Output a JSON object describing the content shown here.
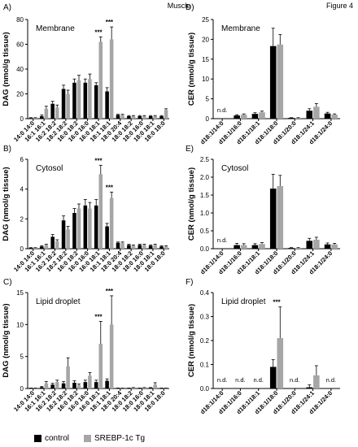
{
  "page": {
    "title": "Muscle",
    "figure": "Figure 4"
  },
  "legend": [
    {
      "name": "control",
      "color": "#000000"
    },
    {
      "name": "SREBP-1c Tg",
      "color": "#a6a6a6"
    }
  ],
  "chart_data": [
    {
      "panel": "A)",
      "title": "Membrane",
      "type": "bar",
      "ylabel": "DAG (nmol/g tissue)",
      "ylim": [
        0,
        80
      ],
      "yticks": [
        0,
        20,
        40,
        60,
        80
      ],
      "categories": [
        "14:0 14:0",
        "16:1 16:1",
        "16:2 18:2",
        "18:2 18:2",
        "16:0 18:2",
        "16:0 16:0",
        "16:0 18:1",
        "18:1 18:1",
        "18:0 20:4",
        "18:0 18:2",
        "18:0 16:0",
        "18:0 18:1",
        "18:0 18:0"
      ],
      "series": [
        {
          "name": "control",
          "values": [
            0.5,
            2,
            12,
            24,
            29,
            29,
            27,
            22,
            3,
            2,
            2,
            2,
            2
          ],
          "errors": [
            0.3,
            1,
            2,
            3,
            3,
            3,
            2,
            3,
            0.5,
            0.5,
            0.5,
            0.5,
            0.5
          ]
        },
        {
          "name": "SREBP-1c Tg",
          "values": [
            0.5,
            8,
            9,
            20,
            31,
            32,
            62,
            64,
            3,
            2,
            2,
            2,
            7
          ],
          "errors": [
            0.3,
            2,
            2,
            3,
            4,
            4,
            4,
            10,
            0.5,
            0.5,
            0.5,
            0.5,
            1
          ]
        }
      ],
      "annotations": [
        {
          "category": "16:0 18:1",
          "text": "***"
        },
        {
          "category": "18:1 18:1",
          "text": "***"
        }
      ]
    },
    {
      "panel": "B)",
      "title": "Cytosol",
      "type": "bar",
      "ylabel": "DAG (nmol/g tissue)",
      "ylim": [
        0,
        6
      ],
      "yticks": [
        0,
        2,
        4,
        6
      ],
      "categories": [
        "14:0 14:0",
        "16:1 16:1",
        "16:2 18:2",
        "18:2 18:2",
        "16:0 18:2",
        "16:0 16:0",
        "16:0 18:1",
        "18:1 18:1",
        "18:0 20:4",
        "18:0 18:2",
        "18:0 16:0",
        "18:0 18:1",
        "18:0 18:0"
      ],
      "series": [
        {
          "name": "control",
          "values": [
            0.05,
            0.15,
            0.8,
            1.9,
            2.4,
            2.9,
            2.9,
            1.5,
            0.4,
            0.25,
            0.25,
            0.2,
            0.15
          ],
          "errors": [
            0.02,
            0.05,
            0.15,
            0.3,
            0.3,
            0.4,
            0.4,
            0.2,
            0.05,
            0.05,
            0.05,
            0.05,
            0.05
          ]
        },
        {
          "name": "SREBP-1c Tg",
          "values": [
            0.05,
            0.25,
            0.5,
            1.3,
            2.7,
            2.7,
            5.0,
            3.4,
            0.4,
            0.2,
            0.25,
            0.25,
            0.15
          ],
          "errors": [
            0.02,
            0.05,
            0.1,
            0.2,
            0.3,
            0.4,
            0.6,
            0.4,
            0.05,
            0.05,
            0.05,
            0.05,
            0.05
          ]
        }
      ],
      "annotations": [
        {
          "category": "16:0 18:1",
          "text": "***"
        },
        {
          "category": "18:1 18:1",
          "text": "***"
        }
      ]
    },
    {
      "panel": "C)",
      "title": "Lipid droplet",
      "type": "bar",
      "ylabel": "DAG (nmol/g tissue)",
      "ylim": [
        0,
        15
      ],
      "yticks": [
        0,
        5,
        10,
        15
      ],
      "categories": [
        "14:0 14:0",
        "16:1 16:1",
        "16:2 18:2",
        "18:2 18:2",
        "16:0 18:2",
        "16:0 16:0",
        "16:0 18:1",
        "18:1 18:1",
        "18:0 20:4",
        "18:0 18:2",
        "18:0 16:0",
        "18:0 18:1",
        "18:0 18:0"
      ],
      "series": [
        {
          "name": "control",
          "values": [
            0.05,
            0.2,
            0.6,
            0.8,
            0.9,
            1.0,
            1.0,
            1.2,
            0.05,
            0.05,
            0.05,
            0.1,
            0.05
          ],
          "errors": [
            0.02,
            0.1,
            0.2,
            0.3,
            0.3,
            0.3,
            0.3,
            0.3,
            0.02,
            0.02,
            0.02,
            0.05,
            0.02
          ]
        },
        {
          "name": "SREBP-1c Tg",
          "values": [
            0.05,
            0.8,
            1.0,
            3.5,
            0.5,
            2.0,
            7.0,
            10.0,
            0.05,
            0.1,
            0.1,
            0.6,
            0.05
          ],
          "errors": [
            0.02,
            0.3,
            0.3,
            1.3,
            0.2,
            0.5,
            3.5,
            4.5,
            0.02,
            0.05,
            0.05,
            0.3,
            0.02
          ]
        }
      ],
      "annotations": [
        {
          "category": "16:0 18:1",
          "text": "***"
        },
        {
          "category": "18:1 18:1",
          "text": "***"
        }
      ]
    },
    {
      "panel": "D)",
      "title": "Membrane",
      "type": "bar",
      "ylabel": "CER (nmol/g tissue)",
      "ylim": [
        0,
        25
      ],
      "yticks": [
        0,
        5,
        10,
        15,
        20,
        25
      ],
      "categories": [
        "d18:1/14:0",
        "d18:1/16:0",
        "d18:1/18:1",
        "d18:1/18:0",
        "d18:1/20:0",
        "d18:1/24:1",
        "d18:1/24:0"
      ],
      "series": [
        {
          "name": "control",
          "values": [
            null,
            0.8,
            1.2,
            18.3,
            0.2,
            2.0,
            1.3
          ],
          "errors": [
            0,
            0.2,
            0.3,
            4.5,
            0.05,
            0.5,
            0.3
          ]
        },
        {
          "name": "SREBP-1c Tg",
          "values": [
            null,
            1.0,
            1.6,
            18.7,
            0.2,
            3.0,
            1.0
          ],
          "errors": [
            0,
            0.2,
            0.3,
            2.5,
            0.05,
            0.8,
            0.2
          ]
        }
      ],
      "na": [
        {
          "category": "d18:1/14:0",
          "text": "n.d."
        }
      ]
    },
    {
      "panel": "E)",
      "title": "Cytosol",
      "type": "bar",
      "ylabel": "CER (nmol/g tissue)",
      "ylim": [
        0,
        2.5
      ],
      "yticks": [
        0.0,
        0.5,
        1.0,
        1.5,
        2.0,
        2.5
      ],
      "categories": [
        "d18:1/14:0",
        "d18:1/16:0",
        "d18:1/18:1",
        "d18:1/18:0",
        "d18:1/20:0",
        "d18:1/24:1",
        "d18:1/24:0"
      ],
      "series": [
        {
          "name": "control",
          "values": [
            null,
            0.1,
            0.1,
            1.68,
            0.02,
            0.22,
            0.12
          ],
          "errors": [
            0,
            0.05,
            0.04,
            0.4,
            0.01,
            0.07,
            0.04
          ]
        },
        {
          "name": "SREBP-1c Tg",
          "values": [
            null,
            0.1,
            0.13,
            1.75,
            0.02,
            0.25,
            0.12
          ],
          "errors": [
            0,
            0.04,
            0.04,
            0.3,
            0.01,
            0.07,
            0.03
          ]
        }
      ],
      "na": [
        {
          "category": "d18:1/14:0",
          "text": "n.d."
        }
      ]
    },
    {
      "panel": "F)",
      "title": "Lipid droplet",
      "type": "bar",
      "ylabel": "CER (nmol/g tissue)",
      "ylim": [
        0,
        0.4
      ],
      "yticks": [
        0.0,
        0.1,
        0.2,
        0.3,
        0.4
      ],
      "categories": [
        "d18:1/14:0",
        "d18:1/16:0",
        "d18:1/18:1",
        "d18:1/18:0",
        "d18:1/20:0",
        "d18:1/24:1",
        "d18:1/24:0"
      ],
      "series": [
        {
          "name": "control",
          "values": [
            null,
            null,
            null,
            0.09,
            null,
            0.005,
            null
          ],
          "errors": [
            0,
            0,
            0,
            0.03,
            0,
            0.01,
            0
          ]
        },
        {
          "name": "SREBP-1c Tg",
          "values": [
            null,
            null,
            null,
            0.21,
            null,
            0.055,
            null
          ],
          "errors": [
            0,
            0,
            0,
            0.13,
            0,
            0.04,
            0
          ]
        }
      ],
      "annotations": [
        {
          "category": "d18:1/18:0",
          "text": "***"
        }
      ],
      "na": [
        {
          "category": "d18:1/14:0",
          "text": "n.d."
        },
        {
          "category": "d18:1/16:0",
          "text": "n.d."
        },
        {
          "category": "d18:1/18:1",
          "text": "n.d."
        },
        {
          "category": "d18:1/20:0",
          "text": "n.d."
        },
        {
          "category": "d18:1/24:0",
          "text": "n.d."
        }
      ]
    }
  ]
}
